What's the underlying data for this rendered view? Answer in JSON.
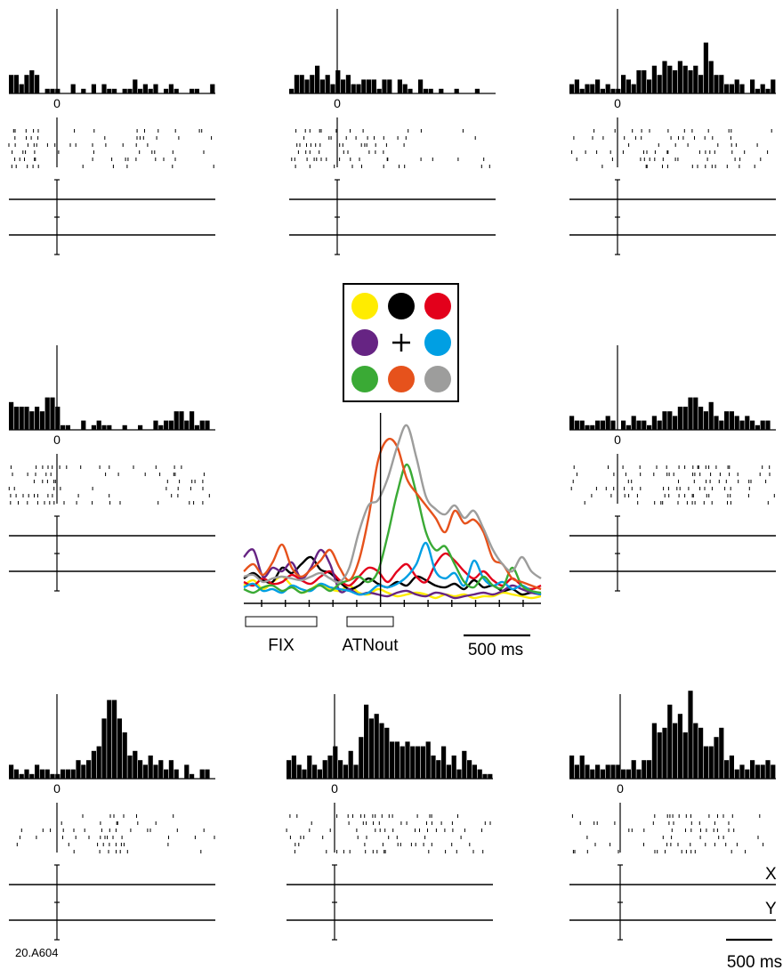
{
  "figure": {
    "cell_id": "20.A604",
    "zero_label": "0",
    "scale_label": "500 ms",
    "x_channel": "X",
    "y_channel": "Y"
  },
  "legend_grid": [
    {
      "color_name": "yellow",
      "color": "#FFEC00"
    },
    {
      "color_name": "black",
      "color": "#000000"
    },
    {
      "color_name": "red",
      "color": "#E3001B"
    },
    {
      "color_name": "purple",
      "color": "#662483"
    },
    {
      "color_name": "fixation-cross",
      "color": "#000000"
    },
    {
      "color_name": "blue",
      "color": "#009FE3"
    },
    {
      "color_name": "green",
      "color": "#3AAA35"
    },
    {
      "color_name": "orange",
      "color": "#E6521C"
    },
    {
      "color_name": "gray",
      "color": "#9D9D9C"
    }
  ],
  "chart_data": [
    {
      "type": "bar",
      "name": "yellow",
      "color": "#FFEC00",
      "values": [
        4,
        4,
        2,
        4,
        5,
        4,
        0,
        1,
        1,
        1,
        0,
        0,
        2,
        0,
        1,
        0,
        2,
        0,
        2,
        1,
        1,
        0,
        1,
        1,
        3,
        1,
        2,
        1,
        2,
        0,
        1,
        2,
        1,
        0,
        0,
        1,
        1,
        0,
        0,
        2
      ]
    },
    {
      "type": "bar",
      "name": "black",
      "color": "#000000",
      "values": [
        1,
        4,
        4,
        3,
        4,
        6,
        3,
        4,
        2,
        5,
        3,
        4,
        2,
        2,
        3,
        3,
        3,
        1,
        3,
        3,
        0,
        3,
        2,
        1,
        0,
        3,
        1,
        1,
        0,
        1,
        0,
        0,
        1,
        0,
        0,
        0,
        1,
        0,
        0,
        0
      ]
    },
    {
      "type": "bar",
      "name": "red",
      "color": "#E3001B",
      "values": [
        2,
        3,
        1,
        2,
        2,
        3,
        1,
        2,
        1,
        1,
        4,
        3,
        2,
        5,
        5,
        3,
        6,
        4,
        7,
        6,
        5,
        7,
        6,
        5,
        6,
        4,
        11,
        7,
        4,
        4,
        2,
        2,
        3,
        2,
        0,
        3,
        1,
        2,
        1,
        3
      ]
    },
    {
      "type": "bar",
      "name": "purple",
      "color": "#662483",
      "values": [
        6,
        5,
        5,
        5,
        4,
        5,
        4,
        7,
        7,
        5,
        1,
        1,
        0,
        0,
        2,
        0,
        1,
        2,
        1,
        1,
        0,
        0,
        1,
        0,
        0,
        1,
        0,
        0,
        2,
        1,
        2,
        2,
        4,
        4,
        2,
        4,
        1,
        2,
        2,
        0
      ]
    },
    {
      "type": "bar",
      "name": "blue",
      "color": "#009FE3",
      "values": [
        3,
        2,
        2,
        1,
        1,
        2,
        2,
        3,
        2,
        0,
        2,
        1,
        3,
        2,
        2,
        1,
        3,
        2,
        4,
        4,
        3,
        5,
        5,
        7,
        7,
        5,
        4,
        6,
        3,
        2,
        4,
        4,
        3,
        2,
        3,
        2,
        1,
        2,
        2,
        0
      ]
    },
    {
      "type": "bar",
      "name": "green",
      "color": "#3AAA35",
      "values": [
        3,
        2,
        1,
        2,
        1,
        3,
        2,
        2,
        1,
        1,
        2,
        2,
        2,
        4,
        3,
        4,
        6,
        7,
        13,
        17,
        17,
        13,
        10,
        5,
        6,
        4,
        3,
        5,
        3,
        4,
        2,
        4,
        2,
        0,
        3,
        1,
        0,
        2,
        2,
        0
      ]
    },
    {
      "type": "bar",
      "name": "orange",
      "color": "#E6521C",
      "values": [
        4,
        5,
        3,
        2,
        5,
        3,
        2,
        4,
        5,
        7,
        4,
        3,
        6,
        3,
        9,
        16,
        13,
        14,
        12,
        11,
        8,
        8,
        7,
        8,
        7,
        7,
        7,
        8,
        5,
        4,
        7,
        3,
        5,
        2,
        6,
        4,
        3,
        2,
        1,
        1
      ]
    },
    {
      "type": "bar",
      "name": "gray",
      "color": "#9D9D9C",
      "values": [
        5,
        3,
        5,
        3,
        2,
        3,
        2,
        3,
        3,
        3,
        2,
        2,
        4,
        2,
        4,
        4,
        12,
        10,
        11,
        16,
        12,
        14,
        10,
        19,
        12,
        11,
        7,
        7,
        9,
        11,
        4,
        5,
        2,
        3,
        2,
        4,
        3,
        3,
        4,
        3
      ]
    },
    {
      "type": "line",
      "name": "population",
      "x_range_ms": [
        -1450,
        1050
      ],
      "series": [
        {
          "color": "#FFEC00",
          "values": [
            0.1,
            0.13,
            0.08,
            0.12,
            0.15,
            0.1,
            0.06,
            0.08,
            0.11,
            0.08,
            0.07,
            0.1,
            0.06,
            0.05,
            0.08,
            0.06,
            0.04,
            0.05,
            0.06,
            0.05,
            0.03,
            0.05,
            0.04,
            0.05,
            0.03,
            0.04,
            0.04,
            0.06,
            0.05,
            0.04,
            0.03,
            0.04
          ]
        },
        {
          "color": "#000000",
          "values": [
            0.14,
            0.17,
            0.13,
            0.12,
            0.2,
            0.17,
            0.22,
            0.26,
            0.19,
            0.17,
            0.12,
            0.08,
            0.1,
            0.14,
            0.11,
            0.09,
            0.12,
            0.1,
            0.15,
            0.13,
            0.1,
            0.09,
            0.11,
            0.08,
            0.13,
            0.09,
            0.1,
            0.07,
            0.08,
            0.05,
            0.06,
            0.05
          ]
        },
        {
          "color": "#E3001B",
          "values": [
            0.12,
            0.1,
            0.14,
            0.11,
            0.12,
            0.16,
            0.13,
            0.11,
            0.15,
            0.18,
            0.13,
            0.1,
            0.15,
            0.2,
            0.18,
            0.12,
            0.18,
            0.22,
            0.15,
            0.12,
            0.22,
            0.28,
            0.24,
            0.18,
            0.14,
            0.18,
            0.13,
            0.1,
            0.14,
            0.1,
            0.08,
            0.1
          ]
        },
        {
          "color": "#662483",
          "values": [
            0.26,
            0.3,
            0.15,
            0.2,
            0.18,
            0.23,
            0.14,
            0.2,
            0.3,
            0.22,
            0.07,
            0.08,
            0.05,
            0.06,
            0.05,
            0.04,
            0.06,
            0.07,
            0.05,
            0.04,
            0.06,
            0.05,
            0.03,
            0.04,
            0.05,
            0.06,
            0.05,
            0.07,
            0.1,
            0.08,
            0.06,
            0.05
          ]
        },
        {
          "color": "#009FE3",
          "values": [
            0.09,
            0.11,
            0.07,
            0.08,
            0.06,
            0.1,
            0.08,
            0.07,
            0.11,
            0.09,
            0.08,
            0.07,
            0.05,
            0.06,
            0.1,
            0.09,
            0.11,
            0.15,
            0.22,
            0.34,
            0.18,
            0.14,
            0.17,
            0.1,
            0.24,
            0.14,
            0.1,
            0.12,
            0.08,
            0.1,
            0.07,
            0.05
          ]
        },
        {
          "color": "#3AAA35",
          "values": [
            0.08,
            0.06,
            0.09,
            0.1,
            0.07,
            0.09,
            0.06,
            0.08,
            0.1,
            0.07,
            0.11,
            0.13,
            0.15,
            0.12,
            0.18,
            0.38,
            0.62,
            0.78,
            0.62,
            0.4,
            0.3,
            0.32,
            0.22,
            0.12,
            0.09,
            0.15,
            0.1,
            0.09,
            0.2,
            0.1,
            0.07,
            0.06
          ]
        },
        {
          "color": "#E6521C",
          "values": [
            0.18,
            0.22,
            0.16,
            0.23,
            0.33,
            0.2,
            0.15,
            0.19,
            0.24,
            0.3,
            0.2,
            0.13,
            0.24,
            0.48,
            0.8,
            0.92,
            0.88,
            0.7,
            0.62,
            0.55,
            0.48,
            0.4,
            0.52,
            0.45,
            0.47,
            0.4,
            0.25,
            0.22,
            0.14,
            0.12,
            0.1,
            0.08
          ]
        },
        {
          "color": "#9D9D9C",
          "values": [
            0.15,
            0.16,
            0.12,
            0.14,
            0.15,
            0.14,
            0.13,
            0.15,
            0.17,
            0.14,
            0.12,
            0.2,
            0.4,
            0.55,
            0.58,
            0.7,
            0.88,
            1.0,
            0.82,
            0.6,
            0.53,
            0.5,
            0.55,
            0.48,
            0.52,
            0.42,
            0.3,
            0.22,
            0.18,
            0.26,
            0.18,
            0.14
          ]
        }
      ]
    }
  ],
  "population_labels": {
    "fix": "FIX",
    "attn": "ATNout"
  }
}
